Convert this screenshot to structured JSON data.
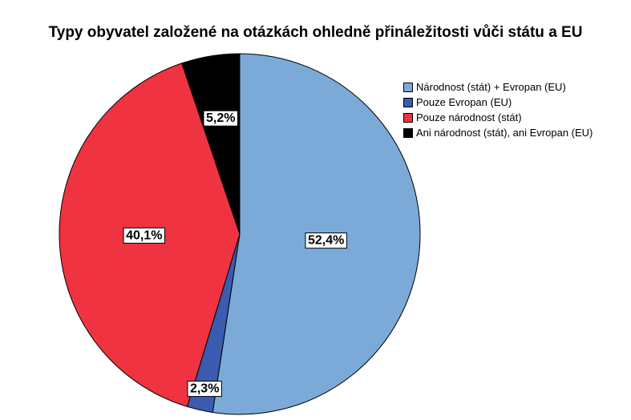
{
  "chart_data": {
    "type": "pie",
    "title": "Typy obyvatel založené na otázkách ohledně přináležitosti vůči státu a EU",
    "slices": [
      {
        "label": "Národnost (stát) + Evropan (EU)",
        "value": 52.4,
        "display": "52,4%",
        "color": "#7BAAD8"
      },
      {
        "label": "Pouze Evropan (EU)",
        "value": 2.3,
        "display": "2,3%",
        "color": "#3B5BB0"
      },
      {
        "label": "Pouze národnost (stát)",
        "value": 40.1,
        "display": "40,1%",
        "color": "#EF3340"
      },
      {
        "label": "Ani národnost (stát), ani Evropan (EU)",
        "value": 5.2,
        "display": "5,2%",
        "color": "#000000"
      }
    ],
    "start": "12 o'clock",
    "direction": "clockwise",
    "legend_position": "right"
  }
}
